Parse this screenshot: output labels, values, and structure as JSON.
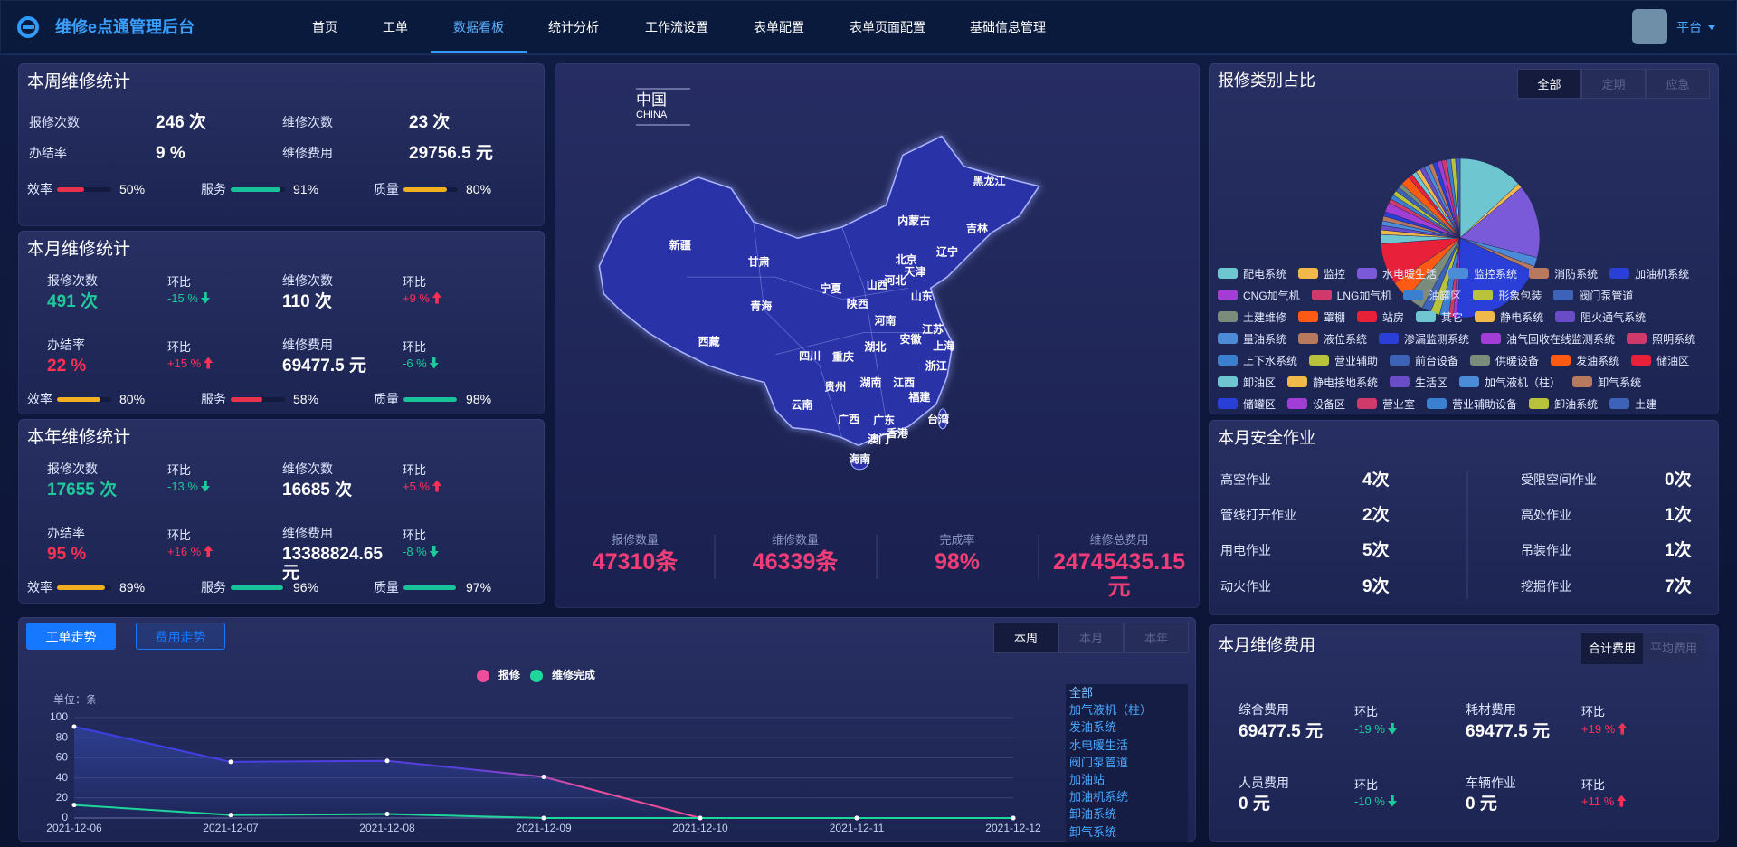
{
  "header": {
    "title": "维修e点通管理后台",
    "nav": [
      "首页",
      "工单",
      "数据看板",
      "统计分析",
      "工作流设置",
      "表单配置",
      "表单页面配置",
      "基础信息管理"
    ],
    "active_nav": 2,
    "user": "平台"
  },
  "weekly": {
    "title": "本周维修统计",
    "stats": [
      {
        "label": "报修次数",
        "value": "246 次"
      },
      {
        "label": "维修次数",
        "value": "23 次"
      },
      {
        "label": "办结率",
        "value": "9 %"
      },
      {
        "label": "维修费用",
        "value": "29756.5 元"
      }
    ],
    "meters": [
      {
        "label": "效率",
        "value": 50,
        "value_label": "50%",
        "color": "#e8334f"
      },
      {
        "label": "服务",
        "value": 91,
        "value_label": "91%",
        "color": "#19c39a"
      },
      {
        "label": "质量",
        "value": 80,
        "value_label": "80%",
        "color": "#f0b020"
      }
    ]
  },
  "monthly": {
    "title": "本月维修统计",
    "stats": [
      {
        "label": "报修次数",
        "value": "491 次",
        "color": "#1ec99b",
        "ratio_label": "环比",
        "ratio": "-15 %",
        "trend": "down"
      },
      {
        "label": "维修次数",
        "value": "110 次",
        "color": "#ffffff",
        "ratio_label": "环比",
        "ratio": "+9 %",
        "trend": "up"
      },
      {
        "label": "办结率",
        "value": "22 %",
        "color": "#ff3055",
        "ratio_label": "环比",
        "ratio": "+15 %",
        "trend": "up"
      },
      {
        "label": "维修费用",
        "value": "69477.5 元",
        "color": "#ffffff",
        "ratio_label": "环比",
        "ratio": "-6 %",
        "trend": "down"
      }
    ],
    "meters": [
      {
        "label": "效率",
        "value": 80,
        "value_label": "80%",
        "color": "#f0b020"
      },
      {
        "label": "服务",
        "value": 58,
        "value_label": "58%",
        "color": "#e8334f"
      },
      {
        "label": "质量",
        "value": 98,
        "value_label": "98%",
        "color": "#19c39a"
      }
    ]
  },
  "yearly": {
    "title": "本年维修统计",
    "stats": [
      {
        "label": "报修次数",
        "value": "17655 次",
        "color": "#1ec99b",
        "ratio_label": "环比",
        "ratio": "-13 %",
        "trend": "down"
      },
      {
        "label": "维修次数",
        "value": "16685 次",
        "color": "#ffffff",
        "ratio_label": "环比",
        "ratio": "+5 %",
        "trend": "up"
      },
      {
        "label": "办结率",
        "value": "95 %",
        "color": "#ff3055",
        "ratio_label": "环比",
        "ratio": "+16 %",
        "trend": "up"
      },
      {
        "label": "维修费用",
        "value": "13388824.65 元",
        "color": "#ffffff",
        "ratio_label": "环比",
        "ratio": "-8 %",
        "trend": "down"
      }
    ],
    "meters": [
      {
        "label": "效率",
        "value": 89,
        "value_label": "89%",
        "color": "#f0b020"
      },
      {
        "label": "服务",
        "value": 96,
        "value_label": "96%",
        "color": "#19c39a"
      },
      {
        "label": "质量",
        "value": 97,
        "value_label": "97%",
        "color": "#19c39a"
      }
    ]
  },
  "map": {
    "title": "中国",
    "subtitle": "CHINA",
    "provinces": [
      "黑龙江",
      "吉林",
      "辽宁",
      "内蒙古",
      "北京",
      "天津",
      "河北",
      "山西",
      "山东",
      "宁夏",
      "陕西",
      "甘肃",
      "新疆",
      "青海",
      "西藏",
      "河南",
      "江苏",
      "安徽",
      "上海",
      "湖北",
      "四川",
      "重庆",
      "浙江",
      "湖南",
      "江西",
      "贵州",
      "福建",
      "云南",
      "广西",
      "广东",
      "台湾",
      "澳门",
      "香港",
      "海南"
    ],
    "totals": [
      {
        "label": "报修数量",
        "value": "47310条"
      },
      {
        "label": "维修数量",
        "value": "46339条"
      },
      {
        "label": "完成率",
        "value": "98%"
      },
      {
        "label": "维修总费用",
        "value": "24745435.15元"
      }
    ]
  },
  "category_tabs": {
    "items": [
      "全部",
      "定期",
      "应急"
    ],
    "active": 0
  },
  "safety": {
    "title": "本月安全作业",
    "items": [
      {
        "label": "高空作业",
        "value": "4次"
      },
      {
        "label": "管线打开作业",
        "value": "2次"
      },
      {
        "label": "用电作业",
        "value": "5次"
      },
      {
        "label": "动火作业",
        "value": "9次"
      },
      {
        "label": "受限空间作业",
        "value": "0次"
      },
      {
        "label": "高处作业",
        "value": "1次"
      },
      {
        "label": "吊装作业",
        "value": "1次"
      },
      {
        "label": "挖掘作业",
        "value": "7次"
      }
    ]
  },
  "trend": {
    "tabs": [
      "工单走势",
      "费用走势"
    ],
    "active_tab": 0,
    "periods": [
      "本周",
      "本月",
      "本年"
    ],
    "active_period": 0,
    "filter": [
      "全部",
      "加气液机（柱）",
      "发油系统",
      "水电暖生活",
      "阀门泵管道",
      "加油站",
      "加油机系统",
      "卸油系统",
      "卸气系统"
    ]
  },
  "cost": {
    "title": "本月维修费用",
    "tabs": [
      "合计费用",
      "平均费用"
    ],
    "active": 0,
    "items": [
      {
        "label": "综合费用",
        "value": "69477.5 元",
        "ratio_label": "环比",
        "ratio": "-19 %",
        "trend": "down"
      },
      {
        "label": "耗材费用",
        "value": "69477.5 元",
        "ratio_label": "环比",
        "ratio": "+19 %",
        "trend": "up"
      },
      {
        "label": "人员费用",
        "value": "0 元",
        "ratio_label": "环比",
        "ratio": "-10 %",
        "trend": "down"
      },
      {
        "label": "车辆作业",
        "value": "0 元",
        "ratio_label": "环比",
        "ratio": "+11 %",
        "trend": "up"
      }
    ]
  },
  "chart_data": [
    {
      "type": "line",
      "y_label": "单位：条",
      "categories": [
        "2021-12-06",
        "2021-12-07",
        "2021-12-08",
        "2021-12-09",
        "2021-12-10",
        "2021-12-11",
        "2021-12-12"
      ],
      "series": [
        {
          "name": "报修",
          "color": "#ee4d9b",
          "values": [
            91,
            56,
            57,
            41,
            0,
            0,
            0
          ]
        },
        {
          "name": "维修完成",
          "color": "#1fd69a",
          "values": [
            13,
            3,
            4,
            0,
            0,
            0,
            0
          ]
        }
      ],
      "ylim": [
        0,
        100
      ],
      "yticks": [
        0,
        20,
        40,
        60,
        80,
        100
      ],
      "grid": true
    },
    {
      "type": "pie",
      "title": "报修类别占比",
      "categories": [
        "配电系统",
        "监控",
        "水电暖生活",
        "监控系统",
        "消防系统",
        "加油机系统",
        "CNG加气机",
        "LNG加气机",
        "油罐区",
        "形象包装",
        "阀门泵管道",
        "土建维修",
        "罩棚",
        "站房",
        "其它",
        "静电系统",
        "阻火通气系统",
        "量油系统",
        "液位系统",
        "渗漏监测系统",
        "油气回收在线监测系统",
        "照明系统",
        "上下水系统",
        "营业辅助",
        "前台设备",
        "供暖设备",
        "发油系统",
        "储油区",
        "卸油区",
        "静电接地系统",
        "生活区",
        "加气液机（柱）",
        "卸气系统",
        "储罐区",
        "设备区",
        "营业室",
        "营业辅助设备",
        "卸油系统",
        "土建"
      ],
      "values": [
        14,
        1,
        16,
        2,
        1,
        20,
        1,
        1,
        2,
        2,
        2,
        4,
        4,
        9,
        2,
        1,
        1,
        1,
        1,
        1,
        2,
        1,
        1,
        1,
        1,
        1,
        2,
        1,
        1,
        1,
        1,
        1,
        1,
        1,
        1,
        1,
        1,
        1,
        1
      ],
      "colors": [
        "#6ec6d0",
        "#f0b94a",
        "#7a5ad8",
        "#4b8bd8",
        "#b87a5e",
        "#2a3fd8",
        "#a23ed6",
        "#d03a6a",
        "#3a7fd0",
        "#b8c23a",
        "#3d63b8",
        "#7b8c7a",
        "#ff5a14",
        "#e8203a",
        "#6ec6d0",
        "#f0b94a",
        "#6a4cc8",
        "#4b8bd8",
        "#b87a5e",
        "#2a3fd8",
        "#a23ed6",
        "#d03a6a",
        "#3a7fd0",
        "#b8c23a",
        "#3d63b8",
        "#7b8c7a",
        "#ff5a14",
        "#e8203a",
        "#6ec6d0",
        "#f0b94a",
        "#6a4cc8",
        "#4b8bd8",
        "#b87a5e",
        "#2a3fd8",
        "#a23ed6",
        "#d03a6a",
        "#3a7fd0",
        "#b8c23a",
        "#3d63b8"
      ]
    }
  ]
}
